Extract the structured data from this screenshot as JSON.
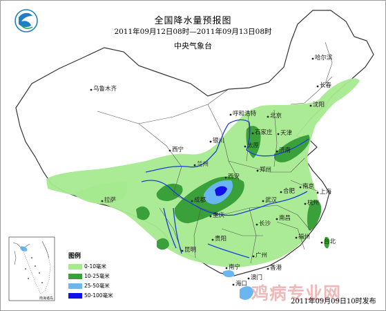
{
  "title": "全国降水量预报图",
  "period": "2011年09月12日08时—2011年09月13日08时",
  "agency": "中央气象台",
  "issue_time": "2011年09月09日10时发布",
  "watermark": "鸡病专业网",
  "legend": {
    "title": "图例",
    "items": [
      {
        "label": "0-10毫米",
        "color": "#a6ea8f"
      },
      {
        "label": "10-25毫米",
        "color": "#3aa13a"
      },
      {
        "label": "25-50毫米",
        "color": "#6ab6f0"
      },
      {
        "label": "50-100毫米",
        "color": "#1010e8"
      }
    ]
  },
  "inset_label": "南海诸岛",
  "cities": [
    {
      "id": "haerbin",
      "name": "哈尔滨"
    },
    {
      "id": "changchun",
      "name": "长春"
    },
    {
      "id": "shenyang",
      "name": "沈阳"
    },
    {
      "id": "wulumuqi",
      "name": "乌鲁木齐"
    },
    {
      "id": "huhehaote",
      "name": "呼和浩特"
    },
    {
      "id": "beijing",
      "name": "北京"
    },
    {
      "id": "tianjin",
      "name": "天津"
    },
    {
      "id": "shijiazhuang",
      "name": "石家庄"
    },
    {
      "id": "taiyuan",
      "name": "太原"
    },
    {
      "id": "yinchuan",
      "name": "银川"
    },
    {
      "id": "jinan",
      "name": "济南"
    },
    {
      "id": "xining",
      "name": "西宁"
    },
    {
      "id": "lanzhou",
      "name": "兰州"
    },
    {
      "id": "zhengzhou",
      "name": "郑州"
    },
    {
      "id": "xian",
      "name": "西安"
    },
    {
      "id": "hefei",
      "name": "合肥"
    },
    {
      "id": "nanjing",
      "name": "南京"
    },
    {
      "id": "shanghai",
      "name": "上海"
    },
    {
      "id": "lasa",
      "name": "拉萨"
    },
    {
      "id": "chengdu",
      "name": "成都"
    },
    {
      "id": "wuhan",
      "name": "武汉"
    },
    {
      "id": "hangzhou",
      "name": "杭州"
    },
    {
      "id": "chongqing",
      "name": "重庆"
    },
    {
      "id": "changsha",
      "name": "长沙"
    },
    {
      "id": "nanchang",
      "name": "南昌"
    },
    {
      "id": "guiyang",
      "name": "贵阳"
    },
    {
      "id": "fuzhou",
      "name": "福州"
    },
    {
      "id": "taibei",
      "name": "台北"
    },
    {
      "id": "kunming",
      "name": "昆明"
    },
    {
      "id": "guangzhou",
      "name": "广州"
    },
    {
      "id": "nanning",
      "name": "南宁"
    },
    {
      "id": "xianggang",
      "name": "香港"
    },
    {
      "id": "aomen",
      "name": "澳门"
    },
    {
      "id": "haikou",
      "name": "海口"
    }
  ]
}
